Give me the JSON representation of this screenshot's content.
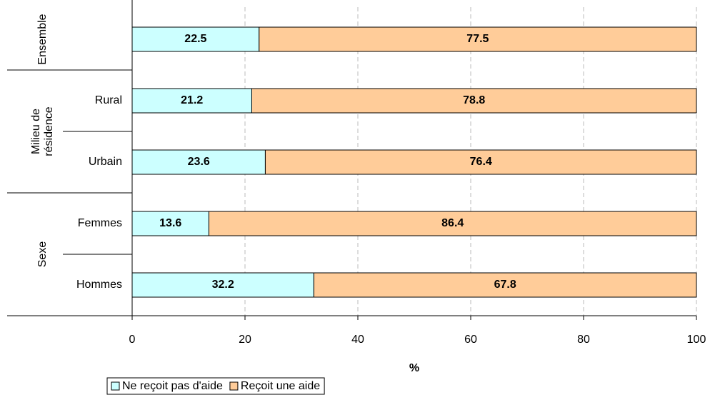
{
  "chart_data": {
    "type": "stacked_barh",
    "categories": [
      null,
      "Rural",
      "Urbain",
      "Femmes",
      "Hommes"
    ],
    "groups": [
      {
        "label": [
          "Ensemble"
        ],
        "size": 1
      },
      {
        "label": [
          "Milieu de",
          "résidence"
        ],
        "size": 2
      },
      {
        "label": [
          "Sexe"
        ],
        "size": 2
      }
    ],
    "series": [
      {
        "name": "Ne reçoit pas d'aide",
        "color": "#ccffff",
        "values": [
          22.5,
          21.2,
          23.6,
          13.6,
          32.2
        ]
      },
      {
        "name": "Reçoit une aide",
        "color": "#ffcc99",
        "values": [
          77.5,
          78.8,
          76.4,
          86.4,
          67.8
        ]
      }
    ],
    "xlim": [
      0,
      100
    ],
    "xticks": [
      0,
      20,
      40,
      60,
      80,
      100
    ],
    "xlabel": "%",
    "grid": true,
    "legend": "bottom"
  }
}
